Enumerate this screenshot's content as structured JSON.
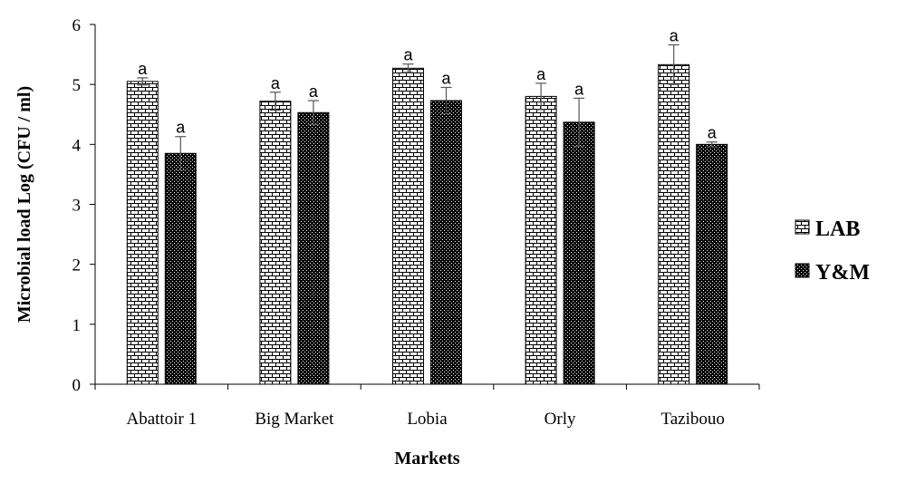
{
  "chart_data": {
    "type": "bar",
    "title": "",
    "xlabel": "Markets",
    "ylabel": "Microbial load Log (CFU / ml)",
    "ylim": [
      0,
      6
    ],
    "yticks": [
      "0",
      "1",
      "2",
      "3",
      "4",
      "5",
      "6"
    ],
    "categories": [
      "Abattoir 1",
      "Big Market",
      "Lobia",
      "Orly",
      "Tazibouo"
    ],
    "series": [
      {
        "name": "LAB",
        "values": [
          5.05,
          4.72,
          5.27,
          4.8,
          5.33
        ],
        "errors": [
          0.06,
          0.15,
          0.07,
          0.22,
          0.33
        ],
        "labels": [
          "a",
          "a",
          "a",
          "a",
          "a"
        ],
        "pattern": "brick",
        "fill": "#ffffff"
      },
      {
        "name": "Y&M",
        "values": [
          3.85,
          4.53,
          4.73,
          4.37,
          4.0
        ],
        "errors": [
          0.28,
          0.2,
          0.22,
          0.4,
          0.04
        ],
        "labels": [
          "a",
          "a",
          "a",
          "a",
          "a"
        ],
        "pattern": "dots",
        "fill": "#000000"
      }
    ],
    "legend_position": "right",
    "grid": false
  }
}
